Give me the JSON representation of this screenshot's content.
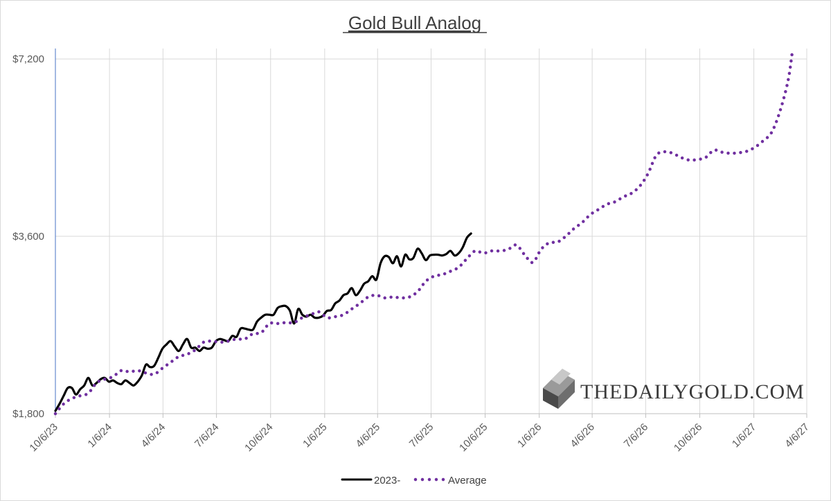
{
  "chart_data": {
    "type": "line",
    "title": "Gold Bull Analog",
    "xlabel": "",
    "ylabel": "",
    "x_axis": {
      "type": "date",
      "min": "2023-10-06",
      "max": "2027-04-06",
      "ticks": [
        "10/6/23",
        "1/6/24",
        "4/6/24",
        "7/6/24",
        "10/6/24",
        "1/6/25",
        "4/6/25",
        "7/6/25",
        "10/6/25",
        "1/6/26",
        "4/6/26",
        "7/6/26",
        "10/6/26",
        "1/6/27",
        "4/6/27"
      ]
    },
    "y_axis": {
      "min": 1800,
      "max": 7500,
      "ticks": [
        1800,
        3600,
        7200
      ],
      "tick_labels": [
        "$1,800",
        "$3,600",
        "$7,200"
      ],
      "scale": "log"
    },
    "grid": true,
    "legend": {
      "position": "bottom"
    },
    "series": [
      {
        "name": "2023-",
        "style": "solid",
        "color": "#000000",
        "points": [
          [
            "2023-10-06",
            1820
          ],
          [
            "2023-10-13",
            1870
          ],
          [
            "2023-10-20",
            1930
          ],
          [
            "2023-10-27",
            1990
          ],
          [
            "2023-11-03",
            1990
          ],
          [
            "2023-11-10",
            1940
          ],
          [
            "2023-11-17",
            1980
          ],
          [
            "2023-11-24",
            2010
          ],
          [
            "2023-12-01",
            2070
          ],
          [
            "2023-12-08",
            2010
          ],
          [
            "2023-12-15",
            2030
          ],
          [
            "2023-12-22",
            2060
          ],
          [
            "2023-12-29",
            2070
          ],
          [
            "2024-01-05",
            2040
          ],
          [
            "2024-01-12",
            2050
          ],
          [
            "2024-01-19",
            2030
          ],
          [
            "2024-01-26",
            2020
          ],
          [
            "2024-02-02",
            2050
          ],
          [
            "2024-02-09",
            2030
          ],
          [
            "2024-02-16",
            2010
          ],
          [
            "2024-02-23",
            2040
          ],
          [
            "2024-03-01",
            2090
          ],
          [
            "2024-03-08",
            2180
          ],
          [
            "2024-03-15",
            2160
          ],
          [
            "2024-03-22",
            2170
          ],
          [
            "2024-03-29",
            2240
          ],
          [
            "2024-04-05",
            2320
          ],
          [
            "2024-04-12",
            2360
          ],
          [
            "2024-04-19",
            2390
          ],
          [
            "2024-04-26",
            2340
          ],
          [
            "2024-05-03",
            2300
          ],
          [
            "2024-05-10",
            2360
          ],
          [
            "2024-05-17",
            2410
          ],
          [
            "2024-05-24",
            2330
          ],
          [
            "2024-05-31",
            2330
          ],
          [
            "2024-06-07",
            2300
          ],
          [
            "2024-06-14",
            2330
          ],
          [
            "2024-06-21",
            2320
          ],
          [
            "2024-06-28",
            2330
          ],
          [
            "2024-07-05",
            2390
          ],
          [
            "2024-07-12",
            2410
          ],
          [
            "2024-07-19",
            2400
          ],
          [
            "2024-07-26",
            2390
          ],
          [
            "2024-08-02",
            2440
          ],
          [
            "2024-08-09",
            2430
          ],
          [
            "2024-08-16",
            2510
          ],
          [
            "2024-08-23",
            2510
          ],
          [
            "2024-08-30",
            2500
          ],
          [
            "2024-09-06",
            2500
          ],
          [
            "2024-09-13",
            2580
          ],
          [
            "2024-09-20",
            2620
          ],
          [
            "2024-09-27",
            2650
          ],
          [
            "2024-10-04",
            2650
          ],
          [
            "2024-10-11",
            2650
          ],
          [
            "2024-10-18",
            2720
          ],
          [
            "2024-10-25",
            2740
          ],
          [
            "2024-11-01",
            2740
          ],
          [
            "2024-11-08",
            2690
          ],
          [
            "2024-11-15",
            2560
          ],
          [
            "2024-11-22",
            2710
          ],
          [
            "2024-11-29",
            2650
          ],
          [
            "2024-12-06",
            2630
          ],
          [
            "2024-12-13",
            2650
          ],
          [
            "2024-12-20",
            2620
          ],
          [
            "2024-12-27",
            2620
          ],
          [
            "2025-01-03",
            2640
          ],
          [
            "2025-01-10",
            2690
          ],
          [
            "2025-01-17",
            2700
          ],
          [
            "2025-01-24",
            2770
          ],
          [
            "2025-01-31",
            2800
          ],
          [
            "2025-02-07",
            2860
          ],
          [
            "2025-02-14",
            2880
          ],
          [
            "2025-02-21",
            2940
          ],
          [
            "2025-02-28",
            2860
          ],
          [
            "2025-03-07",
            2910
          ],
          [
            "2025-03-14",
            2990
          ],
          [
            "2025-03-21",
            3020
          ],
          [
            "2025-03-28",
            3080
          ],
          [
            "2025-04-04",
            3040
          ],
          [
            "2025-04-11",
            3240
          ],
          [
            "2025-04-18",
            3330
          ],
          [
            "2025-04-25",
            3320
          ],
          [
            "2025-05-02",
            3240
          ],
          [
            "2025-05-09",
            3330
          ],
          [
            "2025-05-16",
            3200
          ],
          [
            "2025-05-23",
            3350
          ],
          [
            "2025-05-30",
            3290
          ],
          [
            "2025-06-06",
            3310
          ],
          [
            "2025-06-13",
            3430
          ],
          [
            "2025-06-20",
            3370
          ],
          [
            "2025-06-27",
            3280
          ],
          [
            "2025-07-04",
            3340
          ],
          [
            "2025-07-11",
            3350
          ],
          [
            "2025-07-18",
            3350
          ],
          [
            "2025-07-25",
            3340
          ],
          [
            "2025-08-01",
            3360
          ],
          [
            "2025-08-08",
            3400
          ],
          [
            "2025-08-15",
            3340
          ],
          [
            "2025-08-22",
            3370
          ],
          [
            "2025-08-29",
            3450
          ],
          [
            "2025-09-05",
            3580
          ],
          [
            "2025-09-12",
            3640
          ]
        ]
      },
      {
        "name": "Average",
        "style": "dotted",
        "color": "#7030A0",
        "points": [
          [
            "2023-10-06",
            1800
          ],
          [
            "2023-10-20",
            1870
          ],
          [
            "2023-11-03",
            1910
          ],
          [
            "2023-11-17",
            1930
          ],
          [
            "2023-12-01",
            1950
          ],
          [
            "2023-12-15",
            2030
          ],
          [
            "2023-12-29",
            2060
          ],
          [
            "2024-01-12",
            2080
          ],
          [
            "2024-01-26",
            2130
          ],
          [
            "2024-02-09",
            2120
          ],
          [
            "2024-02-23",
            2130
          ],
          [
            "2024-03-08",
            2110
          ],
          [
            "2024-03-22",
            2100
          ],
          [
            "2024-04-05",
            2150
          ],
          [
            "2024-04-19",
            2200
          ],
          [
            "2024-05-03",
            2250
          ],
          [
            "2024-05-17",
            2270
          ],
          [
            "2024-05-31",
            2310
          ],
          [
            "2024-06-14",
            2380
          ],
          [
            "2024-06-28",
            2390
          ],
          [
            "2024-07-12",
            2380
          ],
          [
            "2024-07-26",
            2390
          ],
          [
            "2024-08-09",
            2410
          ],
          [
            "2024-08-23",
            2410
          ],
          [
            "2024-09-06",
            2460
          ],
          [
            "2024-09-20",
            2470
          ],
          [
            "2024-10-04",
            2560
          ],
          [
            "2024-10-18",
            2560
          ],
          [
            "2024-11-01",
            2570
          ],
          [
            "2024-11-15",
            2570
          ],
          [
            "2024-11-29",
            2620
          ],
          [
            "2024-12-13",
            2650
          ],
          [
            "2024-12-27",
            2680
          ],
          [
            "2025-01-10",
            2620
          ],
          [
            "2025-01-24",
            2630
          ],
          [
            "2025-02-07",
            2650
          ],
          [
            "2025-02-21",
            2710
          ],
          [
            "2025-03-07",
            2770
          ],
          [
            "2025-03-21",
            2840
          ],
          [
            "2025-04-04",
            2860
          ],
          [
            "2025-04-18",
            2830
          ],
          [
            "2025-05-02",
            2840
          ],
          [
            "2025-05-16",
            2830
          ],
          [
            "2025-05-30",
            2840
          ],
          [
            "2025-06-13",
            2900
          ],
          [
            "2025-06-27",
            3020
          ],
          [
            "2025-07-11",
            3080
          ],
          [
            "2025-07-25",
            3100
          ],
          [
            "2025-08-08",
            3140
          ],
          [
            "2025-08-22",
            3190
          ],
          [
            "2025-09-05",
            3300
          ],
          [
            "2025-09-19",
            3400
          ],
          [
            "2025-10-03",
            3370
          ],
          [
            "2025-10-17",
            3400
          ],
          [
            "2025-10-31",
            3400
          ],
          [
            "2025-11-14",
            3420
          ],
          [
            "2025-11-28",
            3480
          ],
          [
            "2025-12-12",
            3350
          ],
          [
            "2025-12-26",
            3250
          ],
          [
            "2026-01-09",
            3420
          ],
          [
            "2026-01-23",
            3510
          ],
          [
            "2026-02-06",
            3520
          ],
          [
            "2026-02-20",
            3600
          ],
          [
            "2026-03-06",
            3710
          ],
          [
            "2026-03-20",
            3800
          ],
          [
            "2026-04-03",
            3920
          ],
          [
            "2026-04-17",
            4000
          ],
          [
            "2026-05-01",
            4080
          ],
          [
            "2026-05-15",
            4120
          ],
          [
            "2026-05-29",
            4200
          ],
          [
            "2026-06-12",
            4260
          ],
          [
            "2026-06-26",
            4380
          ],
          [
            "2026-07-10",
            4600
          ],
          [
            "2026-07-24",
            4940
          ],
          [
            "2026-08-07",
            5010
          ],
          [
            "2026-08-21",
            4980
          ],
          [
            "2026-09-04",
            4900
          ],
          [
            "2026-09-18",
            4850
          ],
          [
            "2026-10-02",
            4860
          ],
          [
            "2026-10-16",
            4900
          ],
          [
            "2026-10-30",
            5040
          ],
          [
            "2026-11-13",
            5000
          ],
          [
            "2026-11-27",
            4980
          ],
          [
            "2026-12-11",
            4990
          ],
          [
            "2026-12-25",
            5020
          ],
          [
            "2027-01-08",
            5100
          ],
          [
            "2027-01-22",
            5230
          ],
          [
            "2027-02-05",
            5400
          ],
          [
            "2027-02-19",
            5850
          ],
          [
            "2027-03-05",
            6600
          ],
          [
            "2027-03-12",
            7350
          ]
        ]
      }
    ]
  },
  "watermark": {
    "text": "THEDAILYGOLD.COM",
    "icon": "gold-bar-icon"
  }
}
